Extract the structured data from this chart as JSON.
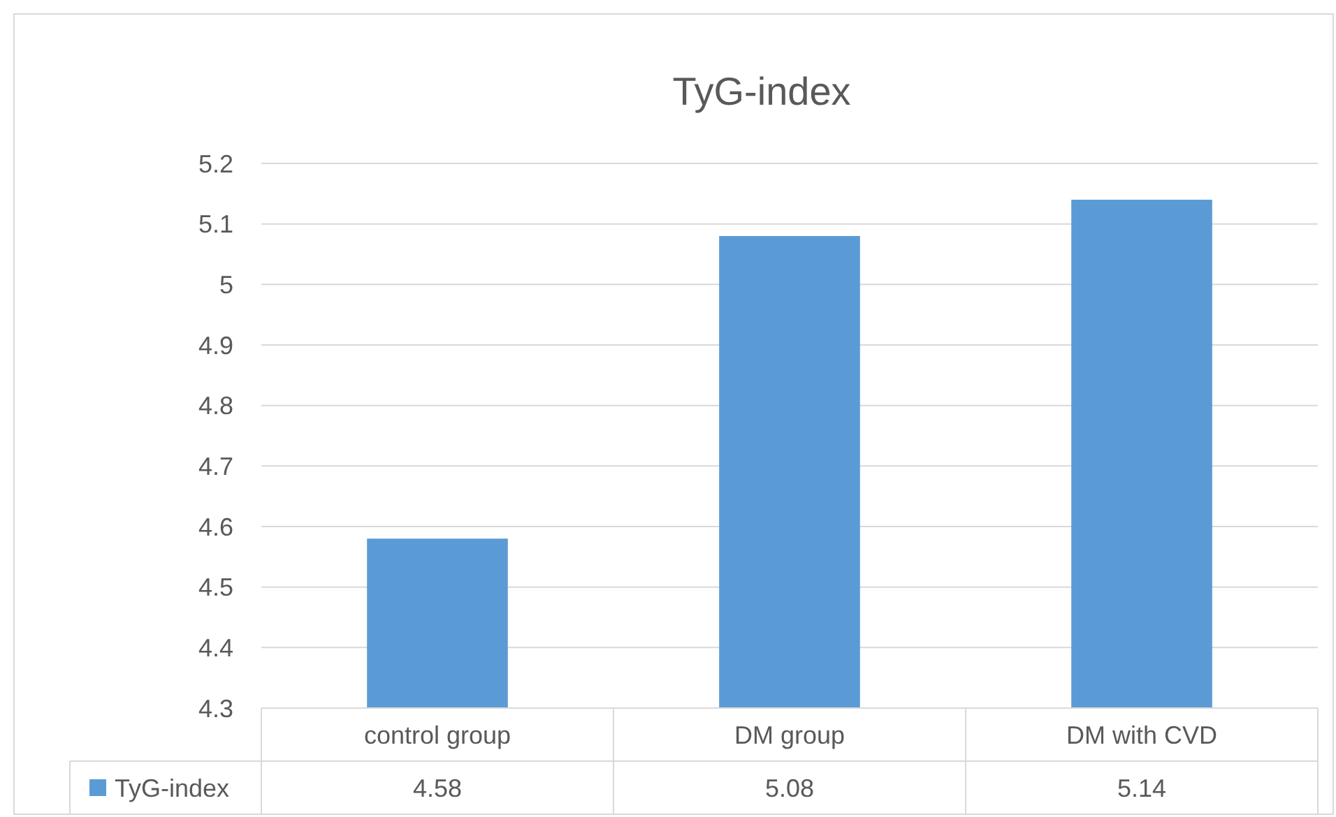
{
  "chart_data": {
    "type": "bar",
    "title": "TyG-index",
    "categories": [
      "control group",
      "DM group",
      "DM with CVD"
    ],
    "series": [
      {
        "name": "TyG-index",
        "color": "#5b9bd5",
        "values": [
          4.58,
          5.08,
          5.14
        ]
      }
    ],
    "ylim": [
      4.3,
      5.2
    ],
    "yticks": [
      4.3,
      4.4,
      4.5,
      4.6,
      4.7,
      4.8,
      4.9,
      5,
      5.1,
      5.2
    ],
    "grid": "y",
    "legend": "bottom",
    "data_labels": true
  }
}
